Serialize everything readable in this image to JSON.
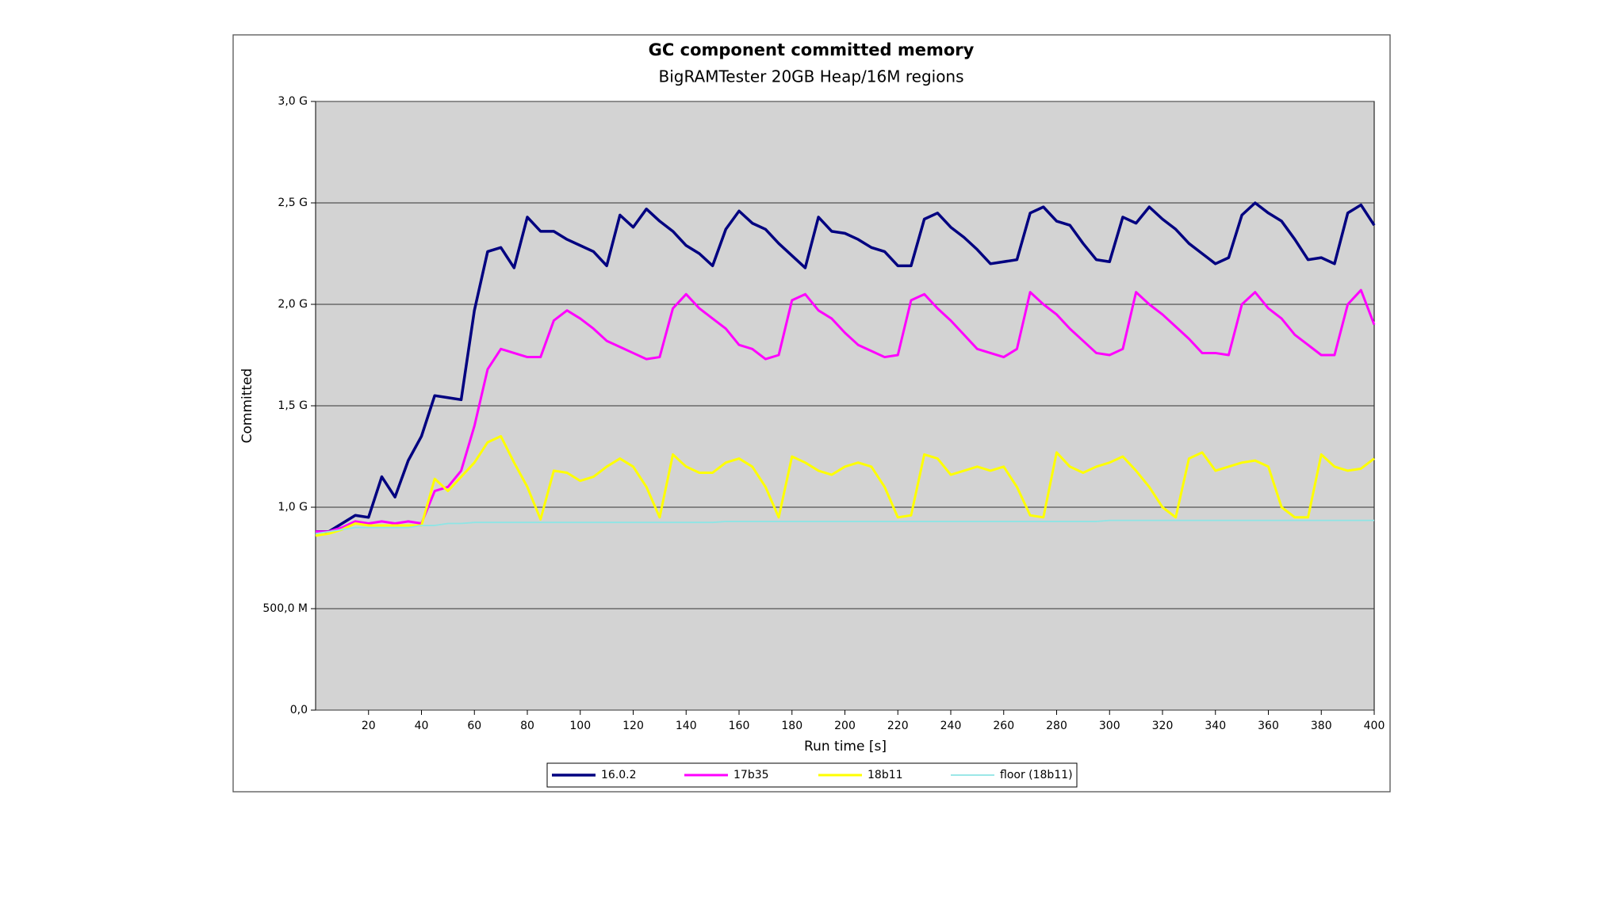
{
  "chart_data": {
    "type": "line",
    "title": "GC component committed memory",
    "subtitle": "BigRAMTester 20GB Heap/16M regions",
    "x_label": "Run time [s]",
    "y_label": "Committed",
    "x": [
      0,
      5,
      10,
      15,
      20,
      25,
      30,
      35,
      40,
      45,
      50,
      55,
      60,
      65,
      70,
      75,
      80,
      85,
      90,
      95,
      100,
      105,
      110,
      115,
      120,
      125,
      130,
      135,
      140,
      145,
      150,
      155,
      160,
      165,
      170,
      175,
      180,
      185,
      190,
      195,
      200,
      205,
      210,
      215,
      220,
      225,
      230,
      235,
      240,
      245,
      250,
      255,
      260,
      265,
      270,
      275,
      280,
      285,
      290,
      295,
      300,
      305,
      310,
      315,
      320,
      325,
      330,
      335,
      340,
      345,
      350,
      355,
      360,
      365,
      370,
      375,
      380,
      385,
      390,
      395,
      400
    ],
    "xlim": [
      0,
      400
    ],
    "xticks": [
      20,
      40,
      60,
      80,
      100,
      120,
      140,
      160,
      180,
      200,
      220,
      240,
      260,
      280,
      300,
      320,
      340,
      360,
      380,
      400
    ],
    "ylim": [
      0,
      3
    ],
    "yticks": [
      {
        "value": 0,
        "label": "0,0"
      },
      {
        "value": 0.5,
        "label": "500,0 M"
      },
      {
        "value": 1,
        "label": "1,0 G"
      },
      {
        "value": 1.5,
        "label": "1,5 G"
      },
      {
        "value": 2,
        "label": "2,0 G"
      },
      {
        "value": 2.5,
        "label": "2,5 G"
      },
      {
        "value": 3,
        "label": "3,0 G"
      }
    ],
    "grid": true,
    "legend": "bottom",
    "series": [
      {
        "name": "16.0.2",
        "color": "#000080",
        "values": [
          0.88,
          0.88,
          0.92,
          0.96,
          0.95,
          1.15,
          1.05,
          1.23,
          1.35,
          1.55,
          1.54,
          1.53,
          1.97,
          2.26,
          2.28,
          2.18,
          2.43,
          2.36,
          2.36,
          2.32,
          2.29,
          2.26,
          2.19,
          2.44,
          2.38,
          2.47,
          2.41,
          2.36,
          2.29,
          2.25,
          2.19,
          2.37,
          2.46,
          2.4,
          2.37,
          2.3,
          2.24,
          2.18,
          2.43,
          2.36,
          2.35,
          2.32,
          2.28,
          2.26,
          2.19,
          2.19,
          2.42,
          2.45,
          2.38,
          2.33,
          2.27,
          2.2,
          2.21,
          2.22,
          2.45,
          2.48,
          2.41,
          2.39,
          2.3,
          2.22,
          2.21,
          2.43,
          2.4,
          2.48,
          2.42,
          2.37,
          2.3,
          2.25,
          2.2,
          2.23,
          2.44,
          2.5,
          2.45,
          2.41,
          2.32,
          2.22,
          2.23,
          2.2,
          2.45,
          2.49,
          2.39
        ]
      },
      {
        "name": "17b35",
        "color": "#ff00ff",
        "values": [
          0.88,
          0.88,
          0.9,
          0.93,
          0.92,
          0.93,
          0.92,
          0.93,
          0.92,
          1.08,
          1.1,
          1.18,
          1.4,
          1.68,
          1.78,
          1.76,
          1.74,
          1.74,
          1.92,
          1.97,
          1.93,
          1.88,
          1.82,
          1.79,
          1.76,
          1.73,
          1.74,
          1.98,
          2.05,
          1.98,
          1.93,
          1.88,
          1.8,
          1.78,
          1.73,
          1.75,
          2.02,
          2.05,
          1.97,
          1.93,
          1.86,
          1.8,
          1.77,
          1.74,
          1.75,
          2.02,
          2.05,
          1.98,
          1.92,
          1.85,
          1.78,
          1.76,
          1.74,
          1.78,
          2.06,
          2.0,
          1.95,
          1.88,
          1.82,
          1.76,
          1.75,
          1.78,
          2.06,
          2.0,
          1.95,
          1.89,
          1.83,
          1.76,
          1.76,
          1.75,
          2.0,
          2.06,
          1.98,
          1.93,
          1.85,
          1.8,
          1.75,
          1.75,
          2.0,
          2.07,
          1.9
        ]
      },
      {
        "name": "18b11",
        "color": "#ffff00",
        "values": [
          0.86,
          0.87,
          0.89,
          0.92,
          0.91,
          0.91,
          0.91,
          0.91,
          0.91,
          1.14,
          1.08,
          1.15,
          1.22,
          1.32,
          1.35,
          1.22,
          1.1,
          0.94,
          1.18,
          1.17,
          1.13,
          1.15,
          1.2,
          1.24,
          1.2,
          1.1,
          0.95,
          1.26,
          1.2,
          1.17,
          1.17,
          1.22,
          1.24,
          1.2,
          1.1,
          0.95,
          1.25,
          1.22,
          1.18,
          1.16,
          1.2,
          1.22,
          1.2,
          1.1,
          0.95,
          0.96,
          1.26,
          1.24,
          1.16,
          1.18,
          1.2,
          1.18,
          1.2,
          1.1,
          0.96,
          0.95,
          1.27,
          1.2,
          1.17,
          1.2,
          1.22,
          1.25,
          1.18,
          1.1,
          1.0,
          0.95,
          1.24,
          1.27,
          1.18,
          1.2,
          1.22,
          1.23,
          1.2,
          1.0,
          0.95,
          0.95,
          1.26,
          1.2,
          1.18,
          1.19,
          1.24
        ]
      },
      {
        "name": "floor (18b11)",
        "color": "#8ee5e5",
        "values": [
          0.87,
          0.88,
          0.89,
          0.9,
          0.9,
          0.9,
          0.9,
          0.9,
          0.91,
          0.91,
          0.92,
          0.92,
          0.925,
          0.925,
          0.925,
          0.925,
          0.925,
          0.925,
          0.925,
          0.925,
          0.925,
          0.925,
          0.925,
          0.925,
          0.925,
          0.925,
          0.925,
          0.925,
          0.925,
          0.925,
          0.925,
          0.93,
          0.93,
          0.93,
          0.93,
          0.93,
          0.93,
          0.93,
          0.93,
          0.93,
          0.93,
          0.93,
          0.93,
          0.93,
          0.93,
          0.93,
          0.93,
          0.93,
          0.93,
          0.93,
          0.93,
          0.93,
          0.93,
          0.93,
          0.93,
          0.93,
          0.93,
          0.93,
          0.93,
          0.93,
          0.935,
          0.935,
          0.935,
          0.935,
          0.935,
          0.935,
          0.935,
          0.935,
          0.935,
          0.935,
          0.935,
          0.935,
          0.935,
          0.935,
          0.935,
          0.935,
          0.935,
          0.935,
          0.935,
          0.935,
          0.935
        ]
      }
    ]
  }
}
